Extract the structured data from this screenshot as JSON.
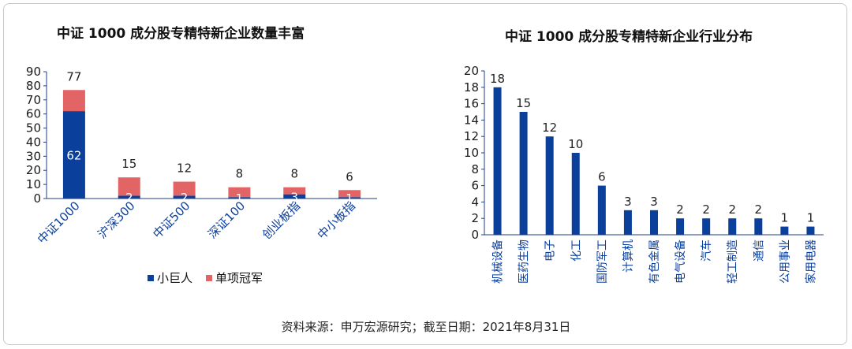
{
  "source_note": "资料来源：申万宏源研究；截至日期：2021年8月31日",
  "colors": {
    "blue": "#0b3f9c",
    "red": "#e36464",
    "axis": "#1f3c8a"
  },
  "chart_data": [
    {
      "type": "bar",
      "stacked": true,
      "title": "中证 1000 成分股专精特新企业数量丰富",
      "categories": [
        "中证1000",
        "沪深300",
        "中证500",
        "深证100",
        "创业板指",
        "中小板指"
      ],
      "series": [
        {
          "name": "小巨人",
          "values": [
            62,
            2,
            2,
            1,
            3,
            1
          ]
        },
        {
          "name": "单项冠军",
          "values": [
            15,
            13,
            10,
            7,
            5,
            5
          ]
        }
      ],
      "totals": [
        77,
        15,
        12,
        8,
        8,
        6
      ],
      "ylim": [
        0,
        90
      ],
      "yticks": [
        0,
        10,
        20,
        30,
        40,
        50,
        60,
        70,
        80,
        90
      ],
      "legend": "bottom",
      "grid": false
    },
    {
      "type": "bar",
      "title": "中证 1000 成分股专精特新企业行业分布",
      "categories": [
        "机械设备",
        "医药生物",
        "电子",
        "化工",
        "国防军工",
        "计算机",
        "有色金属",
        "电气设备",
        "汽车",
        "轻工制造",
        "通信",
        "公用事业",
        "家用电器"
      ],
      "values": [
        18,
        15,
        12,
        10,
        6,
        3,
        3,
        2,
        2,
        2,
        2,
        1,
        1
      ],
      "ylim": [
        0,
        20
      ],
      "yticks": [
        0,
        2,
        4,
        6,
        8,
        10,
        12,
        14,
        16,
        18,
        20
      ],
      "legend": "none",
      "grid": false
    }
  ]
}
